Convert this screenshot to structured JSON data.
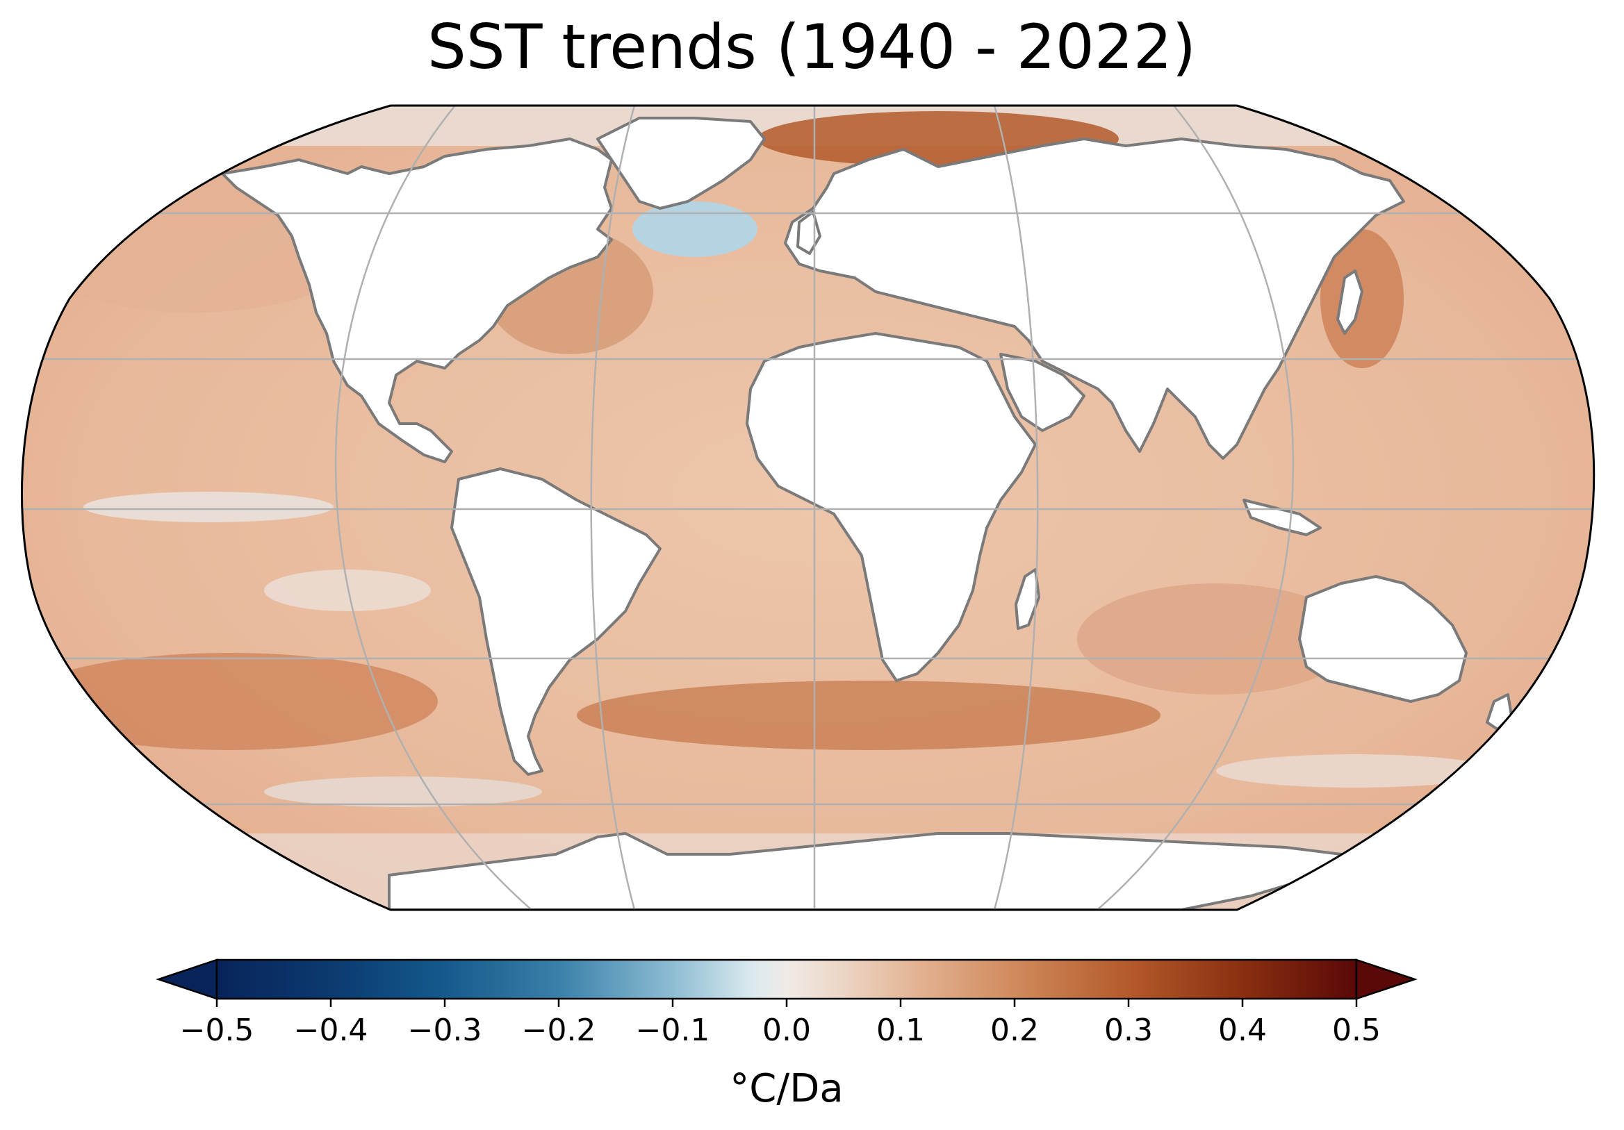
{
  "title": "SST trends (1940 - 2022)",
  "map": {
    "projection": "Robinson",
    "gridlines": true,
    "coastline_color": "#7a7a7a",
    "land_color": "#ffffff"
  },
  "colorbar": {
    "label": "°C/Da",
    "ticks": [
      "−0.5",
      "−0.4",
      "−0.3",
      "−0.2",
      "−0.1",
      "0.0",
      "0.1",
      "0.2",
      "0.3",
      "0.4",
      "0.5"
    ],
    "range": [
      -0.5,
      0.5
    ],
    "extend": "both",
    "colors": [
      "#08245a",
      "#0b4a7d",
      "#2f7aa7",
      "#7fb2cc",
      "#cfe3ec",
      "#f0ebe6",
      "#e8c2a5",
      "#d48f62",
      "#b4572a",
      "#8a2b0e",
      "#4f0606"
    ]
  }
}
